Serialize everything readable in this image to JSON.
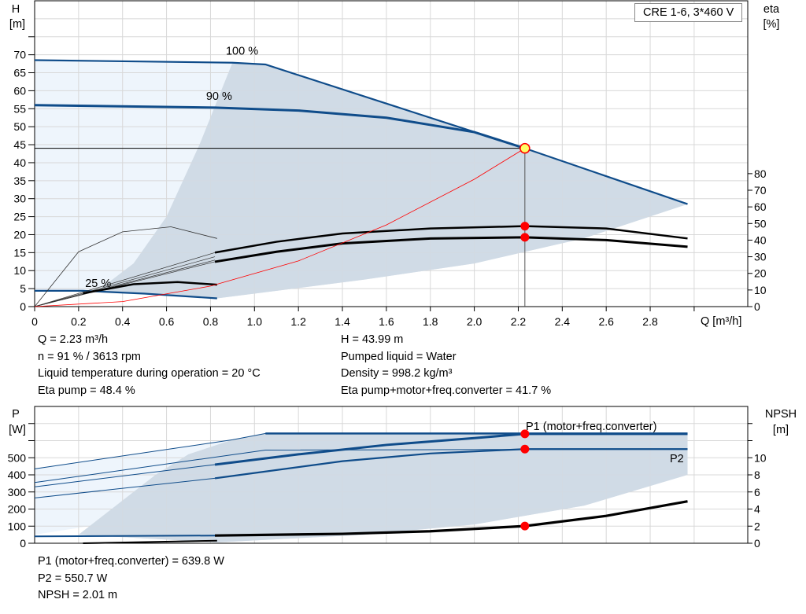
{
  "title_box": "CRE 1-6, 3*460 V",
  "chart_data": [
    {
      "type": "line",
      "name_key": "head-efficiency",
      "ylabel_left": "H",
      "yunit_left": "[m]",
      "ylabel_right": "eta",
      "yunit_right": "[%]",
      "xlabel": "Q [m³/h]",
      "xlim": [
        0,
        3.2
      ],
      "ylim_left": [
        0,
        85
      ],
      "ylim_right": [
        0,
        184
      ],
      "xticks": [
        "0",
        "0.2",
        "0.4",
        "0.6",
        "0.8",
        "1.0",
        "1.2",
        "1.4",
        "1.6",
        "1.8",
        "2.0",
        "2.2",
        "2.4",
        "2.6",
        "2.8"
      ],
      "yticks_left": [
        "0",
        "5",
        "10",
        "15",
        "20",
        "25",
        "30",
        "35",
        "40",
        "45",
        "50",
        "55",
        "60",
        "65",
        "70"
      ],
      "yticks_right": [
        "0",
        "10",
        "20",
        "30",
        "40",
        "50",
        "60",
        "70",
        "80"
      ],
      "grid": true,
      "speed_labels": [
        {
          "text": "100 %",
          "x": 0.87,
          "y": 70
        },
        {
          "text": "90 %",
          "x": 0.78,
          "y": 57.5
        },
        {
          "text": "25 %",
          "x": 0.23,
          "y": 5.5
        }
      ],
      "curves": {
        "h_100": {
          "x": [
            0,
            0.9,
            1.05,
            2.23,
            2.97
          ],
          "y": [
            68.5,
            67.8,
            67.3,
            44,
            28.5
          ]
        },
        "h_90": {
          "x": [
            0,
            0.82,
            1.2,
            1.6,
            2.0,
            2.23
          ],
          "y": [
            56,
            55.3,
            54.5,
            52.5,
            48.5,
            44
          ]
        },
        "h_25": {
          "x": [
            0,
            0.22,
            0.5,
            0.83
          ],
          "y": [
            4.4,
            4.4,
            3.6,
            2.3
          ]
        },
        "system": {
          "x": [
            0,
            0.4,
            0.8,
            1.2,
            1.6,
            2.0,
            2.23
          ],
          "y": [
            0,
            1.4,
            5.7,
            12.7,
            22.7,
            35.4,
            44
          ]
        },
        "eta_pump": {
          "x": [
            0.82,
            1.1,
            1.4,
            1.8,
            2.23,
            2.6,
            2.97
          ],
          "y": [
            32.5,
            39,
            44,
            47,
            48.4,
            47,
            41
          ]
        },
        "eta_total": {
          "x": [
            0.82,
            1.1,
            1.4,
            1.8,
            2.23,
            2.6,
            2.97
          ],
          "y": [
            27,
            33,
            38,
            41,
            41.7,
            40,
            36
          ]
        },
        "eta_thin_arc": {
          "x": [
            0,
            0.2,
            0.4,
            0.62,
            0.83
          ],
          "y": [
            0,
            33,
            45,
            48,
            41
          ]
        },
        "eta_25": {
          "x": [
            0.22,
            0.45,
            0.65,
            0.83
          ],
          "y": [
            8,
            13.5,
            14.8,
            13.2
          ]
        }
      },
      "region_min": {
        "x": [
          0.83,
          1.5,
          2.0,
          2.5,
          2.97
        ],
        "y": [
          2.3,
          7.5,
          12,
          19,
          28.5
        ]
      },
      "light_boundary": {
        "x": [
          0.3,
          0.45,
          0.6,
          0.75,
          0.9
        ],
        "y": [
          5,
          12,
          25,
          45,
          67.8
        ]
      },
      "duty_point": {
        "q": 2.23,
        "h": 43.99,
        "eta_pump": 48.4,
        "eta_total": 41.7
      }
    },
    {
      "type": "line",
      "name_key": "power-npsh",
      "ylabel_left": "P",
      "yunit_left": "[W]",
      "ylabel_right": "NPSH",
      "yunit_right": "[m]",
      "ylim_left": [
        0,
        800
      ],
      "ylim_right": [
        0,
        16
      ],
      "yticks_left": [
        "0",
        "100",
        "200",
        "300",
        "400",
        "500"
      ],
      "yticks_right": [
        "0",
        "2",
        "4",
        "6",
        "8",
        "10"
      ],
      "series_labels": [
        "P1 (motor+freq.converter)",
        "P2"
      ],
      "curves": {
        "p1": {
          "x": [
            0.82,
            1.2,
            1.6,
            2.0,
            2.23,
            2.97
          ],
          "y": [
            460,
            520,
            575,
            615,
            639.8,
            639.8
          ]
        },
        "p1_max": {
          "x": [
            0,
            0.9,
            1.05,
            2.97
          ],
          "y": [
            435,
            605,
            642,
            642
          ]
        },
        "p2": {
          "x": [
            0.82,
            1.4,
            1.8,
            2.23,
            2.97
          ],
          "y": [
            380,
            480,
            525,
            550.7,
            550.7
          ]
        },
        "p2_max": {
          "x": [
            0,
            1.05,
            2.97
          ],
          "y": [
            355,
            545,
            550.7
          ]
        },
        "thin1": {
          "x": [
            0,
            0.82
          ],
          "y": [
            330,
            460
          ]
        },
        "thin2": {
          "x": [
            0,
            0.82
          ],
          "y": [
            265,
            380
          ]
        },
        "npsh": {
          "x": [
            0.82,
            1.4,
            1.8,
            2.23,
            2.6,
            2.97
          ],
          "y": [
            0.9,
            1.1,
            1.4,
            2.01,
            3.2,
            4.9
          ]
        }
      },
      "region": {
        "x": [
          0.83,
          1.5,
          2.0,
          2.5,
          2.97,
          2.97,
          1.05,
          0.9,
          0.7,
          0.55,
          0.4,
          0.25,
          0.2
        ],
        "y": [
          5,
          50,
          110,
          220,
          400,
          642,
          642,
          605,
          520,
          400,
          250,
          100,
          50
        ]
      },
      "duty_point": {
        "q": 2.23,
        "p1": 639.8,
        "p2": 550.7,
        "npsh": 2.01
      }
    }
  ],
  "info_top": {
    "col1": [
      "Q = 2.23 m³/h",
      "n = 91 % / 3613 rpm",
      "Liquid temperature during operation = 20 °C",
      "Eta pump = 48.4 %"
    ],
    "col2": [
      "H = 43.99 m",
      "Pumped liquid = Water",
      "Density = 998.2 kg/m³",
      "Eta pump+motor+freq.converter = 41.7 %"
    ]
  },
  "info_bottom": [
    "P1 (motor+freq.converter) = 639.8 W",
    "P2 = 550.7 W",
    "NPSH = 2.01 m"
  ],
  "colors": {
    "blue": "#0f4c8a",
    "region": "#d0dbe6",
    "light": "#eef5fc",
    "grid": "#d8d8d8",
    "red": "#ff0000",
    "duty": "#ffff66"
  }
}
